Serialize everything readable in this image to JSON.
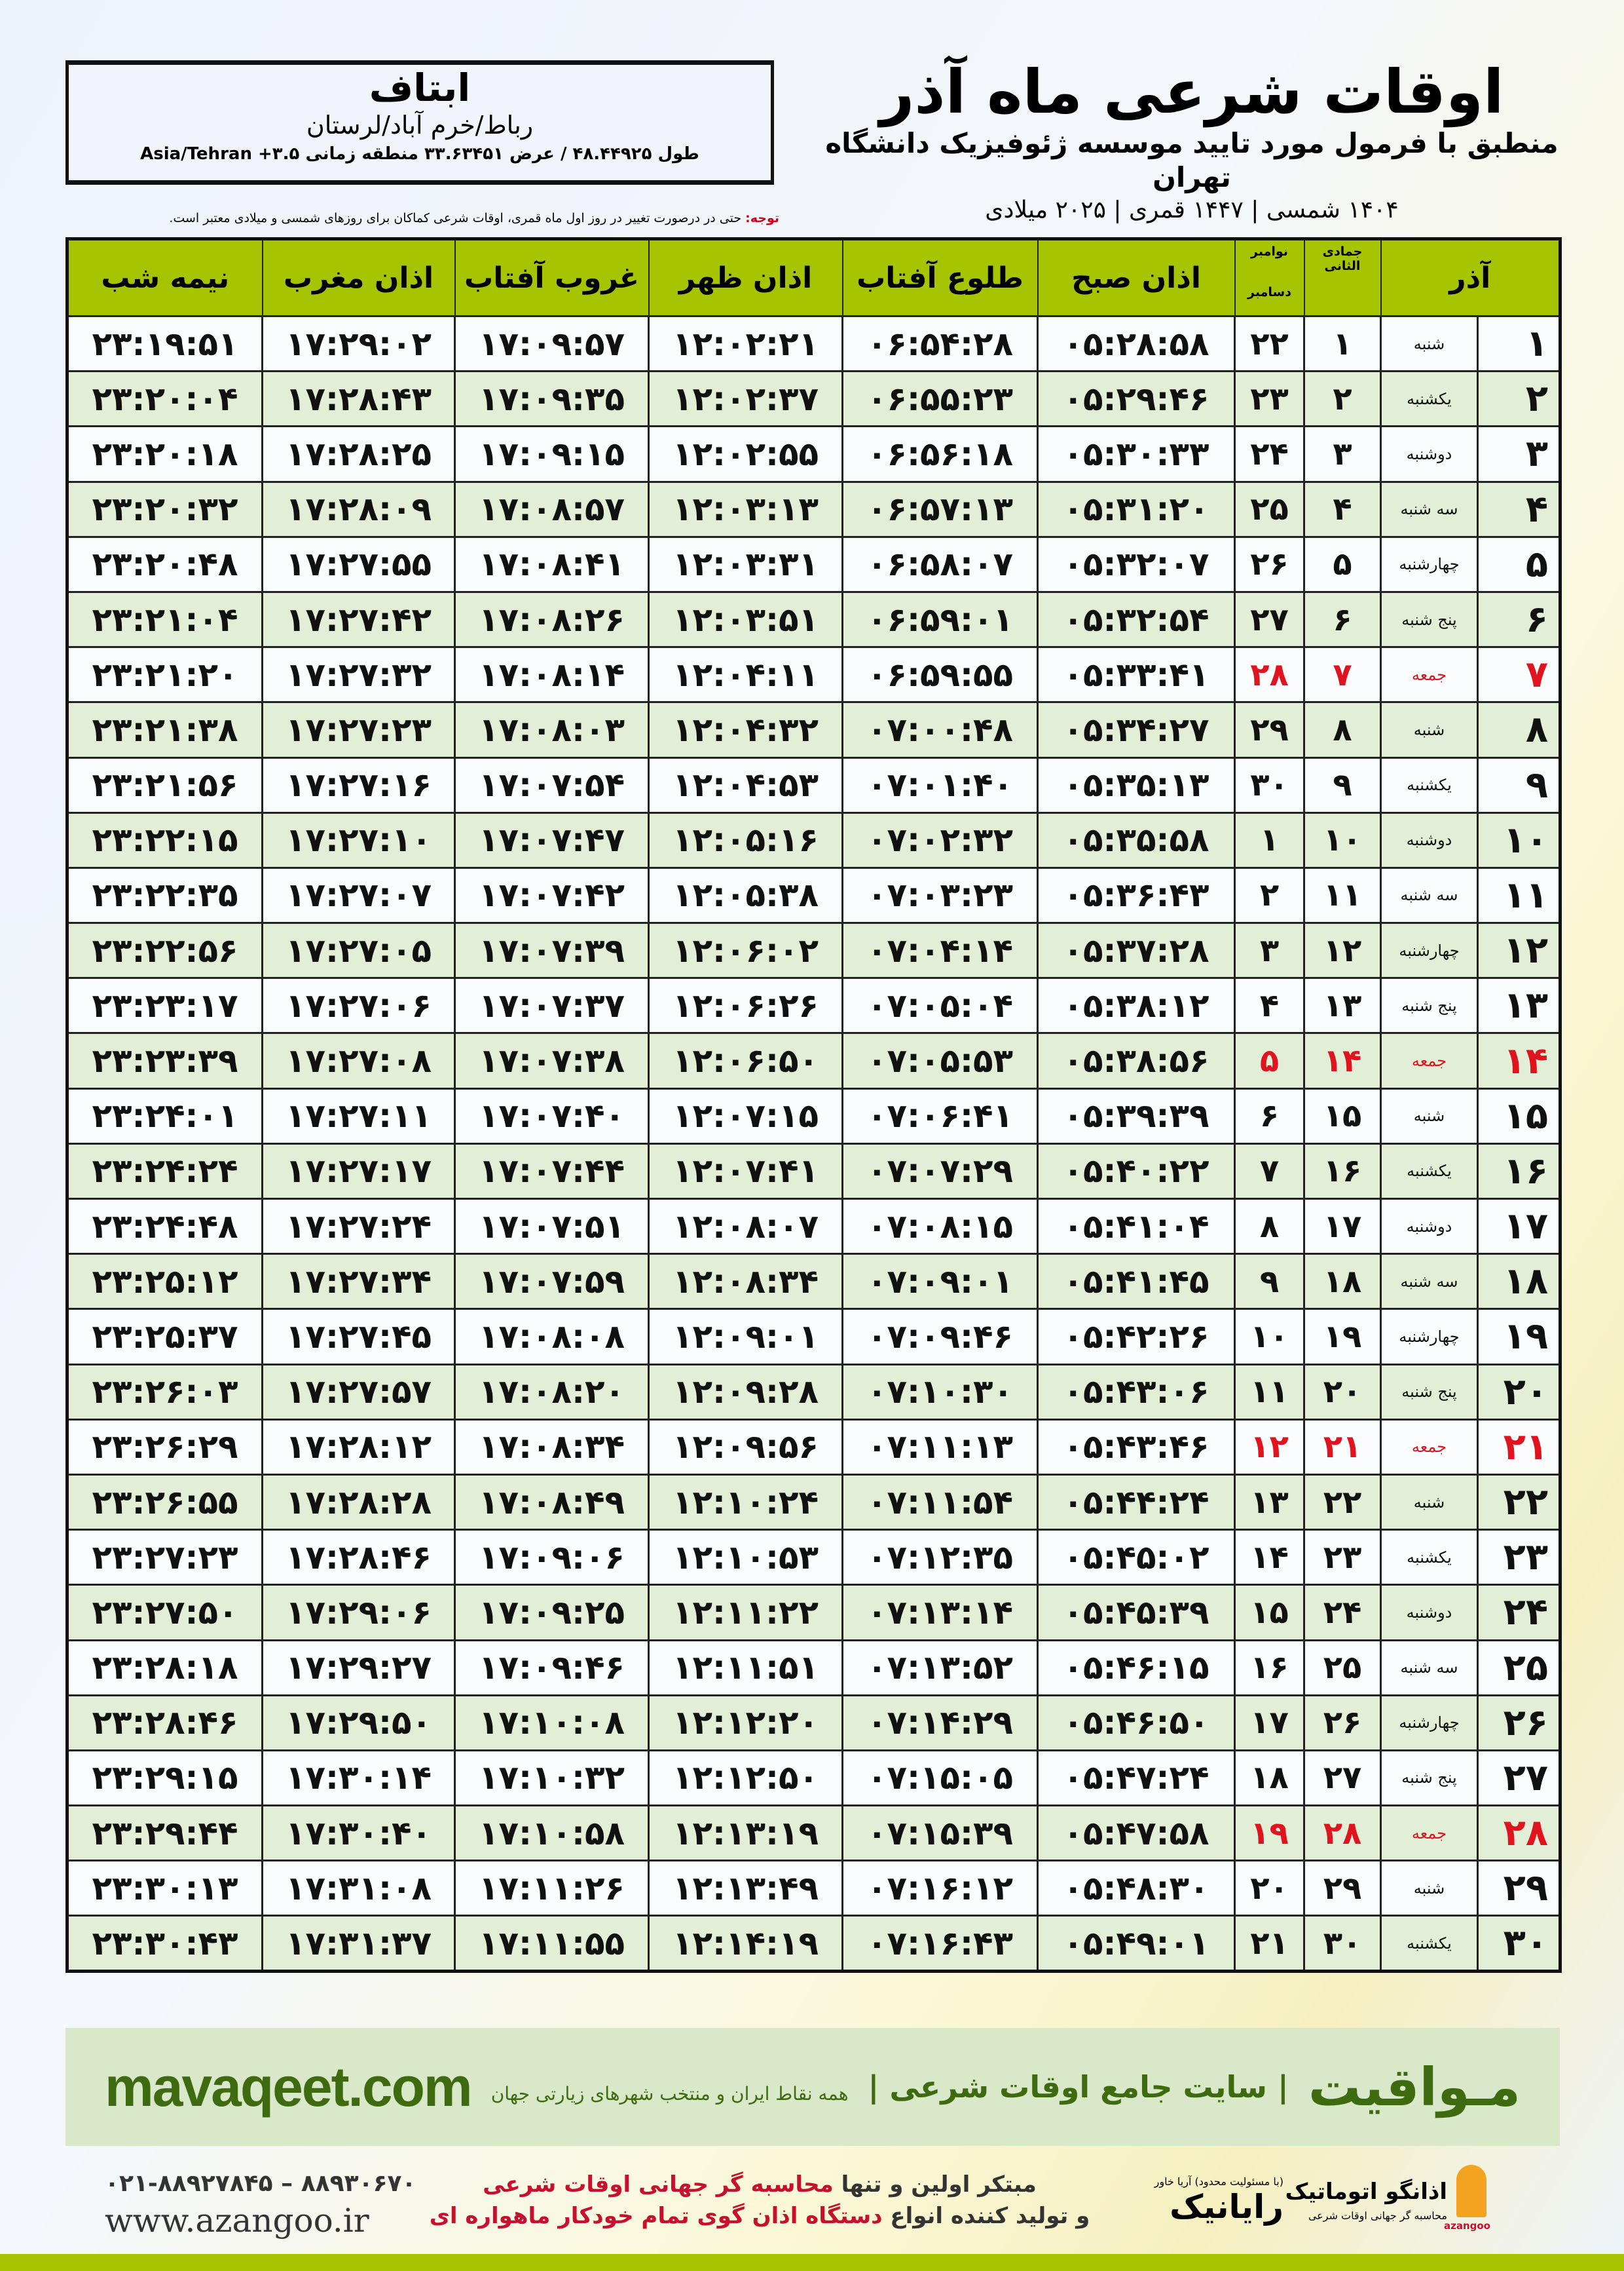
{
  "info": {
    "city": "ابتاف",
    "region": "رباط/خرم آباد/لرستان",
    "coords": "طول ۴۸.۴۴۹۲۵ / عرض ۳۳.۶۳۴۵۱ منطقه زمانی ۳.۵+ Asia/Tehran"
  },
  "title": {
    "main": "اوقات شرعی ماه آذر",
    "sub": "منطبق با فرمول مورد تایید موسسه ژئوفیزیک دانشگاه تهران",
    "date": "۱۴۰۴ شمسی | ۱۴۴۷ قمری | ۲۰۲۵ میلادی"
  },
  "note": {
    "label": "توجه:",
    "text": " حتی در درصورت تغییر در روز اول ماه قمری، اوقات شرعی کماکان برای روزهای شمسی و میلادی معتبر است."
  },
  "table": {
    "headers": {
      "azar": "آذر",
      "jumada": "جمادی الثانی",
      "greg_top": "نوامبر",
      "greg_bottom": "دسامبر",
      "sobh": "اذان صبح",
      "tolu": "طلوع آفتاب",
      "zohr": "اذان ظهر",
      "ghorub": "غروب آفتاب",
      "maghreb": "اذان مغرب",
      "nimeh": "نیمه شب"
    },
    "friday_color": "#e0141e",
    "rows": [
      [
        "۱",
        "شنبه",
        "۱",
        "۲۲",
        "۰۵:۲۸:۵۸",
        "۰۶:۵۴:۲۸",
        "۱۲:۰۲:۲۱",
        "۱۷:۰۹:۵۷",
        "۱۷:۲۹:۰۲",
        "۲۳:۱۹:۵۱"
      ],
      [
        "۲",
        "یکشنبه",
        "۲",
        "۲۳",
        "۰۵:۲۹:۴۶",
        "۰۶:۵۵:۲۳",
        "۱۲:۰۲:۳۷",
        "۱۷:۰۹:۳۵",
        "۱۷:۲۸:۴۳",
        "۲۳:۲۰:۰۴"
      ],
      [
        "۳",
        "دوشنبه",
        "۳",
        "۲۴",
        "۰۵:۳۰:۳۳",
        "۰۶:۵۶:۱۸",
        "۱۲:۰۲:۵۵",
        "۱۷:۰۹:۱۵",
        "۱۷:۲۸:۲۵",
        "۲۳:۲۰:۱۸"
      ],
      [
        "۴",
        "سه شنبه",
        "۴",
        "۲۵",
        "۰۵:۳۱:۲۰",
        "۰۶:۵۷:۱۳",
        "۱۲:۰۳:۱۳",
        "۱۷:۰۸:۵۷",
        "۱۷:۲۸:۰۹",
        "۲۳:۲۰:۳۲"
      ],
      [
        "۵",
        "چهارشنبه",
        "۵",
        "۲۶",
        "۰۵:۳۲:۰۷",
        "۰۶:۵۸:۰۷",
        "۱۲:۰۳:۳۱",
        "۱۷:۰۸:۴۱",
        "۱۷:۲۷:۵۵",
        "۲۳:۲۰:۴۸"
      ],
      [
        "۶",
        "پنج شنبه",
        "۶",
        "۲۷",
        "۰۵:۳۲:۵۴",
        "۰۶:۵۹:۰۱",
        "۱۲:۰۳:۵۱",
        "۱۷:۰۸:۲۶",
        "۱۷:۲۷:۴۲",
        "۲۳:۲۱:۰۴"
      ],
      [
        "۷",
        "جمعه",
        "۷",
        "۲۸",
        "۰۵:۳۳:۴۱",
        "۰۶:۵۹:۵۵",
        "۱۲:۰۴:۱۱",
        "۱۷:۰۸:۱۴",
        "۱۷:۲۷:۳۲",
        "۲۳:۲۱:۲۰"
      ],
      [
        "۸",
        "شنبه",
        "۸",
        "۲۹",
        "۰۵:۳۴:۲۷",
        "۰۷:۰۰:۴۸",
        "۱۲:۰۴:۳۲",
        "۱۷:۰۸:۰۳",
        "۱۷:۲۷:۲۳",
        "۲۳:۲۱:۳۸"
      ],
      [
        "۹",
        "یکشنبه",
        "۹",
        "۳۰",
        "۰۵:۳۵:۱۳",
        "۰۷:۰۱:۴۰",
        "۱۲:۰۴:۵۳",
        "۱۷:۰۷:۵۴",
        "۱۷:۲۷:۱۶",
        "۲۳:۲۱:۵۶"
      ],
      [
        "۱۰",
        "دوشنبه",
        "۱۰",
        "۱",
        "۰۵:۳۵:۵۸",
        "۰۷:۰۲:۳۲",
        "۱۲:۰۵:۱۶",
        "۱۷:۰۷:۴۷",
        "۱۷:۲۷:۱۰",
        "۲۳:۲۲:۱۵"
      ],
      [
        "۱۱",
        "سه شنبه",
        "۱۱",
        "۲",
        "۰۵:۳۶:۴۳",
        "۰۷:۰۳:۲۳",
        "۱۲:۰۵:۳۸",
        "۱۷:۰۷:۴۲",
        "۱۷:۲۷:۰۷",
        "۲۳:۲۲:۳۵"
      ],
      [
        "۱۲",
        "چهارشنبه",
        "۱۲",
        "۳",
        "۰۵:۳۷:۲۸",
        "۰۷:۰۴:۱۴",
        "۱۲:۰۶:۰۲",
        "۱۷:۰۷:۳۹",
        "۱۷:۲۷:۰۵",
        "۲۳:۲۲:۵۶"
      ],
      [
        "۱۳",
        "پنج شنبه",
        "۱۳",
        "۴",
        "۰۵:۳۸:۱۲",
        "۰۷:۰۵:۰۴",
        "۱۲:۰۶:۲۶",
        "۱۷:۰۷:۳۷",
        "۱۷:۲۷:۰۶",
        "۲۳:۲۳:۱۷"
      ],
      [
        "۱۴",
        "جمعه",
        "۱۴",
        "۵",
        "۰۵:۳۸:۵۶",
        "۰۷:۰۵:۵۳",
        "۱۲:۰۶:۵۰",
        "۱۷:۰۷:۳۸",
        "۱۷:۲۷:۰۸",
        "۲۳:۲۳:۳۹"
      ],
      [
        "۱۵",
        "شنبه",
        "۱۵",
        "۶",
        "۰۵:۳۹:۳۹",
        "۰۷:۰۶:۴۱",
        "۱۲:۰۷:۱۵",
        "۱۷:۰۷:۴۰",
        "۱۷:۲۷:۱۱",
        "۲۳:۲۴:۰۱"
      ],
      [
        "۱۶",
        "یکشنبه",
        "۱۶",
        "۷",
        "۰۵:۴۰:۲۲",
        "۰۷:۰۷:۲۹",
        "۱۲:۰۷:۴۱",
        "۱۷:۰۷:۴۴",
        "۱۷:۲۷:۱۷",
        "۲۳:۲۴:۲۴"
      ],
      [
        "۱۷",
        "دوشنبه",
        "۱۷",
        "۸",
        "۰۵:۴۱:۰۴",
        "۰۷:۰۸:۱۵",
        "۱۲:۰۸:۰۷",
        "۱۷:۰۷:۵۱",
        "۱۷:۲۷:۲۴",
        "۲۳:۲۴:۴۸"
      ],
      [
        "۱۸",
        "سه شنبه",
        "۱۸",
        "۹",
        "۰۵:۴۱:۴۵",
        "۰۷:۰۹:۰۱",
        "۱۲:۰۸:۳۴",
        "۱۷:۰۷:۵۹",
        "۱۷:۲۷:۳۴",
        "۲۳:۲۵:۱۲"
      ],
      [
        "۱۹",
        "چهارشنبه",
        "۱۹",
        "۱۰",
        "۰۵:۴۲:۲۶",
        "۰۷:۰۹:۴۶",
        "۱۲:۰۹:۰۱",
        "۱۷:۰۸:۰۸",
        "۱۷:۲۷:۴۵",
        "۲۳:۲۵:۳۷"
      ],
      [
        "۲۰",
        "پنج شنبه",
        "۲۰",
        "۱۱",
        "۰۵:۴۳:۰۶",
        "۰۷:۱۰:۳۰",
        "۱۲:۰۹:۲۸",
        "۱۷:۰۸:۲۰",
        "۱۷:۲۷:۵۷",
        "۲۳:۲۶:۰۳"
      ],
      [
        "۲۱",
        "جمعه",
        "۲۱",
        "۱۲",
        "۰۵:۴۳:۴۶",
        "۰۷:۱۱:۱۳",
        "۱۲:۰۹:۵۶",
        "۱۷:۰۸:۳۴",
        "۱۷:۲۸:۱۲",
        "۲۳:۲۶:۲۹"
      ],
      [
        "۲۲",
        "شنبه",
        "۲۲",
        "۱۳",
        "۰۵:۴۴:۲۴",
        "۰۷:۱۱:۵۴",
        "۱۲:۱۰:۲۴",
        "۱۷:۰۸:۴۹",
        "۱۷:۲۸:۲۸",
        "۲۳:۲۶:۵۵"
      ],
      [
        "۲۳",
        "یکشنبه",
        "۲۳",
        "۱۴",
        "۰۵:۴۵:۰۲",
        "۰۷:۱۲:۳۵",
        "۱۲:۱۰:۵۳",
        "۱۷:۰۹:۰۶",
        "۱۷:۲۸:۴۶",
        "۲۳:۲۷:۲۳"
      ],
      [
        "۲۴",
        "دوشنبه",
        "۲۴",
        "۱۵",
        "۰۵:۴۵:۳۹",
        "۰۷:۱۳:۱۴",
        "۱۲:۱۱:۲۲",
        "۱۷:۰۹:۲۵",
        "۱۷:۲۹:۰۶",
        "۲۳:۲۷:۵۰"
      ],
      [
        "۲۵",
        "سه شنبه",
        "۲۵",
        "۱۶",
        "۰۵:۴۶:۱۵",
        "۰۷:۱۳:۵۲",
        "۱۲:۱۱:۵۱",
        "۱۷:۰۹:۴۶",
        "۱۷:۲۹:۲۷",
        "۲۳:۲۸:۱۸"
      ],
      [
        "۲۶",
        "چهارشنبه",
        "۲۶",
        "۱۷",
        "۰۵:۴۶:۵۰",
        "۰۷:۱۴:۲۹",
        "۱۲:۱۲:۲۰",
        "۱۷:۱۰:۰۸",
        "۱۷:۲۹:۵۰",
        "۲۳:۲۸:۴۶"
      ],
      [
        "۲۷",
        "پنج شنبه",
        "۲۷",
        "۱۸",
        "۰۵:۴۷:۲۴",
        "۰۷:۱۵:۰۵",
        "۱۲:۱۲:۵۰",
        "۱۷:۱۰:۳۲",
        "۱۷:۳۰:۱۴",
        "۲۳:۲۹:۱۵"
      ],
      [
        "۲۸",
        "جمعه",
        "۲۸",
        "۱۹",
        "۰۵:۴۷:۵۸",
        "۰۷:۱۵:۳۹",
        "۱۲:۱۳:۱۹",
        "۱۷:۱۰:۵۸",
        "۱۷:۳۰:۴۰",
        "۲۳:۲۹:۴۴"
      ],
      [
        "۲۹",
        "شنبه",
        "۲۹",
        "۲۰",
        "۰۵:۴۸:۳۰",
        "۰۷:۱۶:۱۲",
        "۱۲:۱۳:۴۹",
        "۱۷:۱۱:۲۶",
        "۱۷:۳۱:۰۸",
        "۲۳:۳۰:۱۳"
      ],
      [
        "۳۰",
        "یکشنبه",
        "۳۰",
        "۲۱",
        "۰۵:۴۹:۰۱",
        "۰۷:۱۶:۴۳",
        "۱۲:۱۴:۱۹",
        "۱۷:۱۱:۵۵",
        "۱۷:۳۱:۳۷",
        "۲۳:۳۰:۴۳"
      ]
    ]
  },
  "footer": {
    "brand": "مـواقیت",
    "tagline": "| سایت جامع اوقات شرعی |",
    "tagline2": "همه نقاط ایران و منتخب شهرهای زیارتی جهان",
    "site": "mavaqeet.com",
    "promo1_a": "مبتکر اولین و تنها ",
    "promo1_b": "محاسبه گر جهانی اوقات شرعی",
    "promo2_a": "و تولید کننده انواع ",
    "promo2_b": "دستگاه اذان گوی تمام خودکار ماهواره ای",
    "phone": "۰۲۱-۸۸۹۲۷۸۴۵ – ۸۸۹۳۰۶۷۰",
    "web": "www.azangoo.ir",
    "raynik": "رایانیک",
    "raynik_small": "(با مسئولیت محدود) آریا خاور",
    "azangoo_name": "اذانگو اتوماتیک",
    "azangoo_sub": "محاسبه گر جهانی اوقات شرعی",
    "azangoo_latin": "azangoo"
  }
}
